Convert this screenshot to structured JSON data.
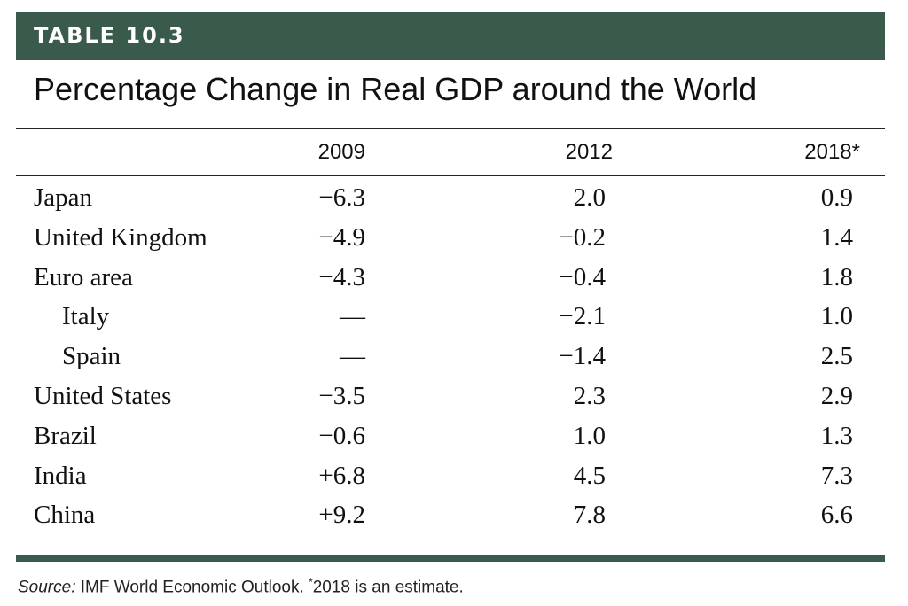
{
  "table": {
    "label": "TABLE 10.3",
    "title": "Percentage Change in Real GDP around the World",
    "columns": [
      "2009",
      "2012",
      "2018*"
    ],
    "rows": [
      {
        "country": "Japan",
        "values": [
          "−6.3",
          "2.0",
          "0.9"
        ]
      },
      {
        "country": "United Kingdom",
        "values": [
          "−4.9",
          "−0.2",
          "1.4"
        ]
      },
      {
        "country": "Euro area",
        "values": [
          "−4.3",
          "−0.4",
          "1.8"
        ]
      },
      {
        "country": "Italy",
        "values": [
          "—",
          "−2.1",
          "1.0"
        ]
      },
      {
        "country": "Spain",
        "values": [
          "—",
          "−1.4",
          "2.5"
        ]
      },
      {
        "country": "United States",
        "values": [
          "−3.5",
          "2.3",
          "2.9"
        ]
      },
      {
        "country": "Brazil",
        "values": [
          "−0.6",
          "1.0",
          "1.3"
        ]
      },
      {
        "country": "India",
        "values": [
          "+6.8",
          "4.5",
          "7.3"
        ]
      },
      {
        "country": "China",
        "values": [
          "+9.2",
          "7.8",
          "6.6"
        ]
      }
    ]
  },
  "footer": {
    "source_label": "Source:",
    "source_text": "IMF World Economic Outlook.",
    "note_marker": "*",
    "note_text": "2018 is an estimate."
  },
  "colors": {
    "band": "#3a5a4b",
    "text": "#111111"
  }
}
